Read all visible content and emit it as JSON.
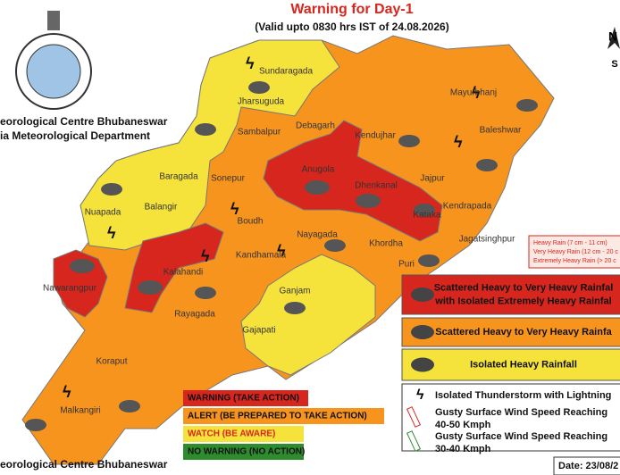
{
  "header": {
    "title": "Warning for Day-1",
    "subtitle": "(Valid upto 0830 hrs IST of 24.08.2026)",
    "org_line_1": "eorological Centre Bhubaneswar",
    "org_line_2": "ia Meteorological Department",
    "compass_n": "N",
    "compass_s": "S"
  },
  "districts": [
    "Sundaragada",
    "Jharsuguda",
    "Sambalpur",
    "Debagarh",
    "Mayurbhanj",
    "Kendujhar",
    "Baleshwar",
    "Baragada",
    "Sonepur",
    "Anugola",
    "Dhenkanal",
    "Jajpur",
    "Kendrapada",
    "Nuapada",
    "Balangir",
    "Boudh",
    "Kataka",
    "Jagatsinghpur",
    "Nayagada",
    "Khordha",
    "Puri",
    "Kandhamala",
    "Kalahandi",
    "Nawarangpur",
    "Rayagada",
    "Ganjam",
    "Gajapati",
    "Koraput",
    "Malkangiri"
  ],
  "rain_scale": [
    "Heavy Rain (7 cm - 11 cm)",
    "Very Heavy Rain (12 cm - 20 c",
    "Extremely Heavy Rain (> 20 c"
  ],
  "warning_levels": [
    {
      "label": "WARNING (TAKE ACTION)",
      "color": "#d7261e"
    },
    {
      "label": "ALERT (BE PREPARED TO TAKE ACTION)",
      "color": "#f7941d"
    },
    {
      "label": "WATCH (BE AWARE)",
      "color": "#f5e33b"
    },
    {
      "label": "NO WARNING (NO ACTION)",
      "color": "#2e8b2e"
    }
  ],
  "rain_legend": [
    {
      "lines": [
        "Scattered Heavy to Very Heavy Rainfal",
        "with Isolated Extremely Heavy Rainfal"
      ],
      "color": "#d7261e"
    },
    {
      "lines": [
        "Scattered Heavy to Very Heavy Rainfa"
      ],
      "color": "#f7941d"
    },
    {
      "lines": [
        "Isolated Heavy Rainfall"
      ],
      "color": "#f5e33b"
    }
  ],
  "symbol_legend": [
    [
      "Isolated Thunderstorm with Lightning"
    ],
    [
      "Gusty Surface Wind Speed Reaching",
      "40-50 Kmph"
    ],
    [
      "Gusty Surface Wind Speed Reaching",
      "30-40 Kmph"
    ]
  ],
  "footer": {
    "org": "eorological Centre Bhubaneswar",
    "date": "Date: 23/08/2"
  }
}
